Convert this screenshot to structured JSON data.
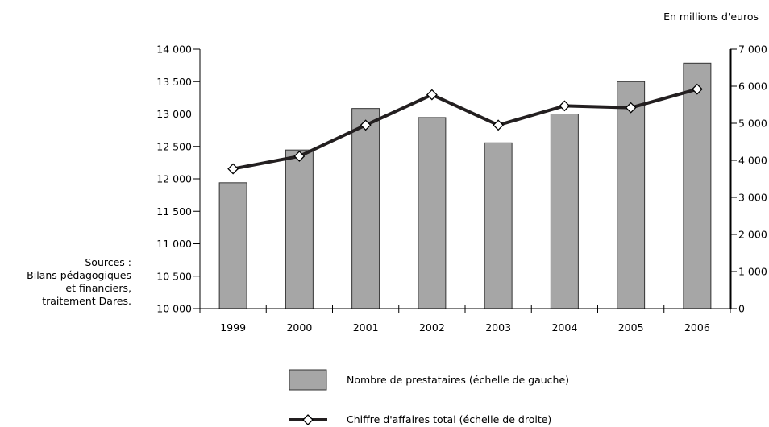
{
  "unit_note": "En millions d'euros",
  "sources": {
    "lines": [
      "Sources :",
      "Bilans pédagogiques",
      "et financiers,",
      "traitement Dares."
    ]
  },
  "colors": {
    "bar_fill": "#a6a6a6",
    "bar_stroke": "#333333",
    "line": "#231f20",
    "marker_fill": "#ffffff"
  },
  "chart_data": {
    "type": "bar",
    "categories": [
      "1999",
      "2000",
      "2001",
      "2002",
      "2003",
      "2004",
      "2005",
      "2006"
    ],
    "series": [
      {
        "name": "Nombre de prestataires (échelle de gauche)",
        "type": "bar",
        "axis": "left",
        "values": [
          11940,
          12445,
          13085,
          12945,
          12555,
          13000,
          13500,
          13785
        ]
      },
      {
        "name": "Chiffre d'affaires total (échelle de droite)",
        "type": "line",
        "axis": "right",
        "values": [
          3770,
          4110,
          4950,
          5770,
          4950,
          5470,
          5420,
          5920
        ]
      }
    ],
    "left_axis": {
      "ylim": [
        10000,
        14000
      ],
      "ticks": [
        10000,
        10500,
        11000,
        11500,
        12000,
        12500,
        13000,
        13500,
        14000
      ],
      "tick_labels": [
        "10 000",
        "10 500",
        "11 000",
        "11 500",
        "12 000",
        "12 500",
        "13 000",
        "13 500",
        "14 000"
      ]
    },
    "right_axis": {
      "ylim": [
        0,
        7000
      ],
      "ticks": [
        0,
        1000,
        2000,
        3000,
        4000,
        5000,
        6000,
        7000
      ],
      "tick_labels": [
        "0",
        "1 000",
        "2 000",
        "3 000",
        "4 000",
        "5 000",
        "6 000",
        "7 000"
      ]
    },
    "grid": false,
    "legend_position": "bottom"
  }
}
